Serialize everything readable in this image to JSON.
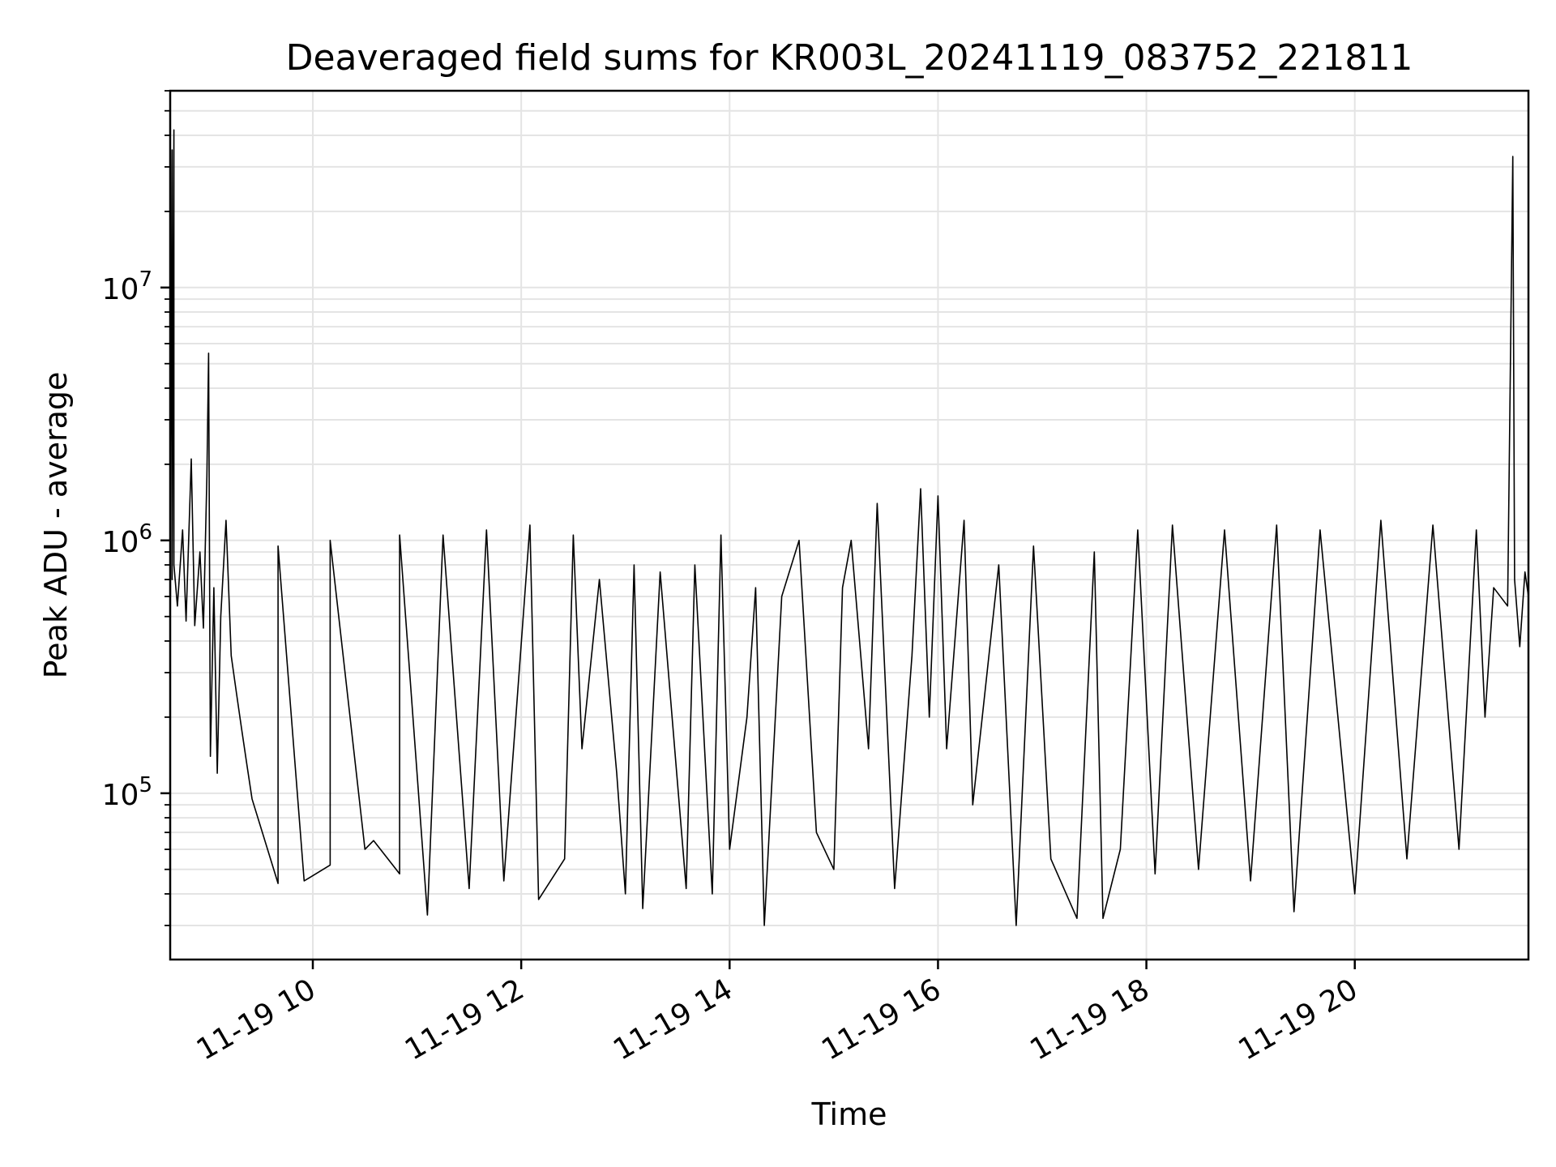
{
  "chart_data": {
    "type": "line",
    "title": "Deaveraged field sums for KR003L_20241119_083752_221811",
    "xlabel": "Time",
    "ylabel": "Peak ADU - average",
    "y_scale": "log",
    "ylim": [
      22000,
      60000000
    ],
    "xlim": [
      "2024-11-19 08:37:52",
      "2024-11-19 21:40:00"
    ],
    "grid": true,
    "line_color": "#000000",
    "x_ticks": [
      {
        "label": "11-19 10",
        "value": "2024-11-19 10:00"
      },
      {
        "label": "11-19 12",
        "value": "2024-11-19 12:00"
      },
      {
        "label": "11-19 14",
        "value": "2024-11-19 14:00"
      },
      {
        "label": "11-19 16",
        "value": "2024-11-19 16:00"
      },
      {
        "label": "11-19 18",
        "value": "2024-11-19 18:00"
      },
      {
        "label": "11-19 20",
        "value": "2024-11-19 20:00"
      }
    ],
    "y_ticks": [
      {
        "base": "10",
        "exp": "5",
        "value": 100000
      },
      {
        "base": "10",
        "exp": "6",
        "value": 1000000
      },
      {
        "base": "10",
        "exp": "7",
        "value": 10000000
      }
    ],
    "series": [
      {
        "points": [
          [
            "2024-11-19 08:38",
            600000
          ],
          [
            "2024-11-19 08:38",
            1200000
          ],
          [
            "2024-11-19 08:39",
            35000000
          ],
          [
            "2024-11-19 08:39",
            700000
          ],
          [
            "2024-11-19 08:40",
            42000000
          ],
          [
            "2024-11-19 08:40",
            800000
          ],
          [
            "2024-11-19 08:42",
            550000
          ],
          [
            "2024-11-19 08:45",
            1100000
          ],
          [
            "2024-11-19 08:47",
            480000
          ],
          [
            "2024-11-19 08:50",
            2100000
          ],
          [
            "2024-11-19 08:52",
            460000
          ],
          [
            "2024-11-19 08:55",
            900000
          ],
          [
            "2024-11-19 08:57",
            450000
          ],
          [
            "2024-11-19 08:59",
            1800000
          ],
          [
            "2024-11-19 09:00",
            5500000
          ],
          [
            "2024-11-19 09:01",
            140000
          ],
          [
            "2024-11-19 09:03",
            650000
          ],
          [
            "2024-11-19 09:05",
            120000
          ],
          [
            "2024-11-19 09:07",
            500000
          ],
          [
            "2024-11-19 09:10",
            1200000
          ],
          [
            "2024-11-19 09:13",
            350000
          ],
          [
            "2024-11-19 09:16",
            250000
          ],
          [
            "2024-11-19 09:19",
            180000
          ],
          [
            "2024-11-19 09:22",
            130000
          ],
          [
            "2024-11-19 09:25",
            95000
          ],
          [
            "2024-11-19 09:40",
            44000
          ],
          [
            "2024-11-19 09:40",
            950000
          ],
          [
            "2024-11-19 09:55",
            45000
          ],
          [
            "2024-11-19 10:10",
            52000
          ],
          [
            "2024-11-19 10:10",
            1000000
          ],
          [
            "2024-11-19 10:30",
            60000
          ],
          [
            "2024-11-19 10:35",
            65000
          ],
          [
            "2024-11-19 10:50",
            48000
          ],
          [
            "2024-11-19 10:50",
            1050000
          ],
          [
            "2024-11-19 11:06",
            33000
          ],
          [
            "2024-11-19 11:15",
            1050000
          ],
          [
            "2024-11-19 11:30",
            42000
          ],
          [
            "2024-11-19 11:40",
            1100000
          ],
          [
            "2024-11-19 11:50",
            45000
          ],
          [
            "2024-11-19 12:05",
            1150000
          ],
          [
            "2024-11-19 12:10",
            38000
          ],
          [
            "2024-11-19 12:25",
            55000
          ],
          [
            "2024-11-19 12:30",
            1050000
          ],
          [
            "2024-11-19 12:35",
            150000
          ],
          [
            "2024-11-19 12:45",
            700000
          ],
          [
            "2024-11-19 12:55",
            120000
          ],
          [
            "2024-11-19 13:00",
            40000
          ],
          [
            "2024-11-19 13:05",
            800000
          ],
          [
            "2024-11-19 13:10",
            35000
          ],
          [
            "2024-11-19 13:20",
            750000
          ],
          [
            "2024-11-19 13:35",
            42000
          ],
          [
            "2024-11-19 13:40",
            800000
          ],
          [
            "2024-11-19 13:50",
            40000
          ],
          [
            "2024-11-19 13:55",
            1050000
          ],
          [
            "2024-11-19 14:00",
            60000
          ],
          [
            "2024-11-19 14:10",
            200000
          ],
          [
            "2024-11-19 14:15",
            650000
          ],
          [
            "2024-11-19 14:20",
            30000
          ],
          [
            "2024-11-19 14:30",
            600000
          ],
          [
            "2024-11-19 14:40",
            1000000
          ],
          [
            "2024-11-19 14:50",
            70000
          ],
          [
            "2024-11-19 15:00",
            50000
          ],
          [
            "2024-11-19 15:05",
            650000
          ],
          [
            "2024-11-19 15:10",
            1000000
          ],
          [
            "2024-11-19 15:20",
            150000
          ],
          [
            "2024-11-19 15:25",
            1400000
          ],
          [
            "2024-11-19 15:35",
            42000
          ],
          [
            "2024-11-19 15:45",
            350000
          ],
          [
            "2024-11-19 15:50",
            1600000
          ],
          [
            "2024-11-19 15:55",
            200000
          ],
          [
            "2024-11-19 16:00",
            1500000
          ],
          [
            "2024-11-19 16:05",
            150000
          ],
          [
            "2024-11-19 16:15",
            1200000
          ],
          [
            "2024-11-19 16:20",
            90000
          ],
          [
            "2024-11-19 16:35",
            800000
          ],
          [
            "2024-11-19 16:45",
            30000
          ],
          [
            "2024-11-19 16:55",
            950000
          ],
          [
            "2024-11-19 17:05",
            55000
          ],
          [
            "2024-11-19 17:20",
            32000
          ],
          [
            "2024-11-19 17:30",
            900000
          ],
          [
            "2024-11-19 17:35",
            32000
          ],
          [
            "2024-11-19 17:45",
            60000
          ],
          [
            "2024-11-19 17:55",
            1100000
          ],
          [
            "2024-11-19 18:05",
            48000
          ],
          [
            "2024-11-19 18:15",
            1150000
          ],
          [
            "2024-11-19 18:30",
            50000
          ],
          [
            "2024-11-19 18:45",
            1100000
          ],
          [
            "2024-11-19 19:00",
            45000
          ],
          [
            "2024-11-19 19:15",
            1150000
          ],
          [
            "2024-11-19 19:25",
            34000
          ],
          [
            "2024-11-19 19:40",
            1100000
          ],
          [
            "2024-11-19 20:00",
            40000
          ],
          [
            "2024-11-19 20:15",
            1200000
          ],
          [
            "2024-11-19 20:30",
            55000
          ],
          [
            "2024-11-19 20:45",
            1150000
          ],
          [
            "2024-11-19 21:00",
            60000
          ],
          [
            "2024-11-19 21:10",
            1100000
          ],
          [
            "2024-11-19 21:15",
            200000
          ],
          [
            "2024-11-19 21:20",
            650000
          ],
          [
            "2024-11-19 21:28",
            550000
          ],
          [
            "2024-11-19 21:31",
            33000000
          ],
          [
            "2024-11-19 21:32",
            700000
          ],
          [
            "2024-11-19 21:35",
            380000
          ],
          [
            "2024-11-19 21:38",
            750000
          ],
          [
            "2024-11-19 21:40",
            600000
          ]
        ]
      }
    ]
  }
}
